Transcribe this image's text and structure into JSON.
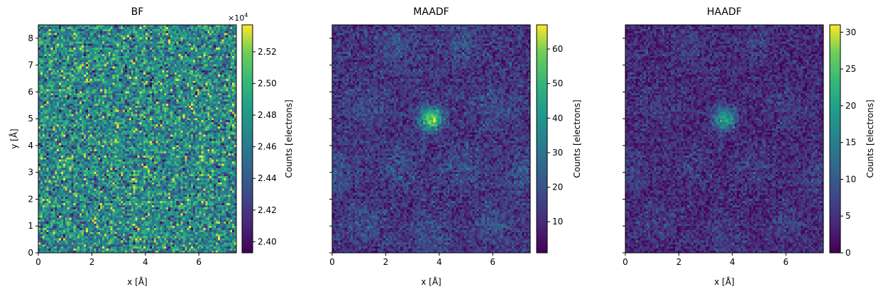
{
  "chart_data": [
    {
      "type": "heatmap",
      "title": "BF",
      "xlabel": "x [Å]",
      "ylabel": "y [Å]",
      "xlim": [
        0,
        7.4
      ],
      "ylim": [
        0,
        8.5
      ],
      "x_ticks": [
        0,
        2,
        4,
        6
      ],
      "y_ticks": [
        0,
        1,
        2,
        3,
        4,
        5,
        6,
        7,
        8
      ],
      "colormap": "viridis",
      "colorbar": {
        "label": "Counts [electrons]",
        "range": [
          23930,
          25370
        ],
        "ticks": [
          2.4,
          2.42,
          2.44,
          2.46,
          2.48,
          2.5,
          2.52
        ],
        "multiplier_label": "×10",
        "multiplier_exponent": "4"
      },
      "pattern": {
        "peaks": [
          {
            "x": 3.7,
            "y": 5.0,
            "value": 24700
          }
        ],
        "background": 24700,
        "noise": "high"
      }
    },
    {
      "type": "heatmap",
      "title": "MAADF",
      "xlabel": "x [Å]",
      "ylabel": "",
      "xlim": [
        0,
        7.4
      ],
      "ylim": [
        0,
        8.5
      ],
      "x_ticks": [
        0,
        2,
        4,
        6
      ],
      "y_ticks": [
        0,
        1,
        2,
        3,
        4,
        5,
        6,
        7,
        8
      ],
      "colormap": "viridis",
      "colorbar": {
        "label": "Counts [electrons]",
        "range": [
          1,
          67
        ],
        "ticks": [
          10,
          20,
          30,
          40,
          50,
          60
        ]
      },
      "pattern": {
        "peaks": [
          {
            "x": 3.7,
            "y": 5.0,
            "value": 60
          }
        ],
        "background": 12,
        "noise": "medium"
      }
    },
    {
      "type": "heatmap",
      "title": "HAADF",
      "xlabel": "x [Å]",
      "ylabel": "",
      "xlim": [
        0,
        7.4
      ],
      "ylim": [
        0,
        8.5
      ],
      "x_ticks": [
        0,
        2,
        4,
        6
      ],
      "y_ticks": [
        0,
        1,
        2,
        3,
        4,
        5,
        6,
        7,
        8
      ],
      "colormap": "viridis",
      "colorbar": {
        "label": "Counts [electrons]",
        "range": [
          0,
          31
        ],
        "ticks": [
          0,
          5,
          10,
          15,
          20,
          25,
          30
        ]
      },
      "pattern": {
        "peaks": [
          {
            "x": 3.7,
            "y": 5.0,
            "value": 20
          }
        ],
        "background": 4,
        "noise": "medium"
      }
    }
  ]
}
